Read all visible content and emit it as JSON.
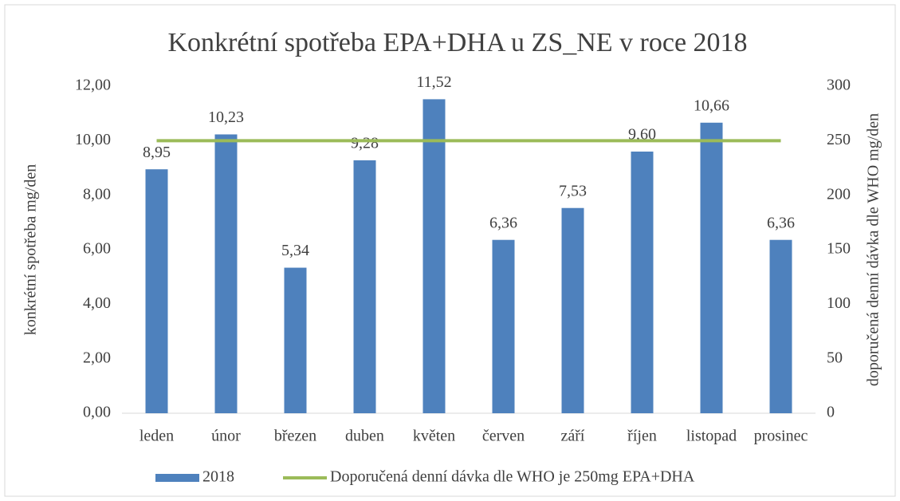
{
  "chart_data": {
    "type": "bar",
    "title": "Konkrétní spotřeba EPA+DHA u ZS_NE v roce 2018",
    "y_label": "konkrétní spotřeba mg/den",
    "y2_label": "doporučená denní dávka dle WHO mg/den",
    "categories": [
      "leden",
      "únor",
      "březen",
      "duben",
      "květen",
      "červen",
      "září",
      "říjen",
      "listopad",
      "prosinec"
    ],
    "series": [
      {
        "name": "2018",
        "type": "bar",
        "color": "#4e81bd",
        "values": [
          8.95,
          10.23,
          5.34,
          9.28,
          11.52,
          6.36,
          7.53,
          9.6,
          10.66,
          6.36
        ],
        "value_labels": [
          "8,95",
          "10,23",
          "5,34",
          "9,28",
          "11,52",
          "6,36",
          "7,53",
          "9,60",
          "10,66",
          "6,36"
        ]
      },
      {
        "name": "Doporučená denní dávka dle WHO je 250mg EPA+DHA",
        "type": "line",
        "color": "#9bbb59",
        "axis": "y2",
        "values": [
          250,
          250,
          250,
          250,
          250,
          250,
          250,
          250,
          250,
          250
        ]
      }
    ],
    "ylim": [
      0,
      12
    ],
    "yticks": [
      {
        "value": 0,
        "label": "0,00"
      },
      {
        "value": 2,
        "label": "2,00"
      },
      {
        "value": 4,
        "label": "4,00"
      },
      {
        "value": 6,
        "label": "6,00"
      },
      {
        "value": 8,
        "label": "8,00"
      },
      {
        "value": 10,
        "label": "10,00"
      },
      {
        "value": 12,
        "label": "12,00"
      }
    ],
    "y2lim": [
      0,
      300
    ],
    "y2ticks": [
      0,
      50,
      100,
      150,
      200,
      250,
      300
    ],
    "legend": "bottom"
  }
}
